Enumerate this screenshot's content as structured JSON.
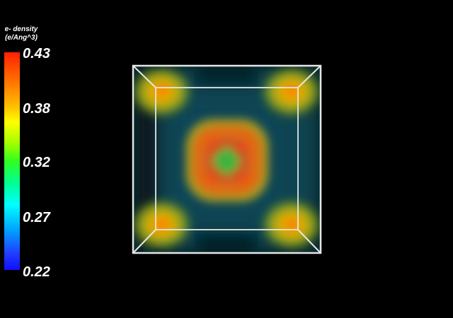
{
  "legend": {
    "title_line1": "e- density",
    "title_line2": "(e/Ang^3)",
    "ticks": [
      "0.43",
      "0.38",
      "0.32",
      "0.27",
      "0.22"
    ],
    "colormap": "rainbow",
    "high_color": "#ff2000",
    "low_color": "#1010ff"
  },
  "scene": {
    "background": "#000000",
    "outline_color": "#e6e6e6",
    "render": "volume"
  }
}
